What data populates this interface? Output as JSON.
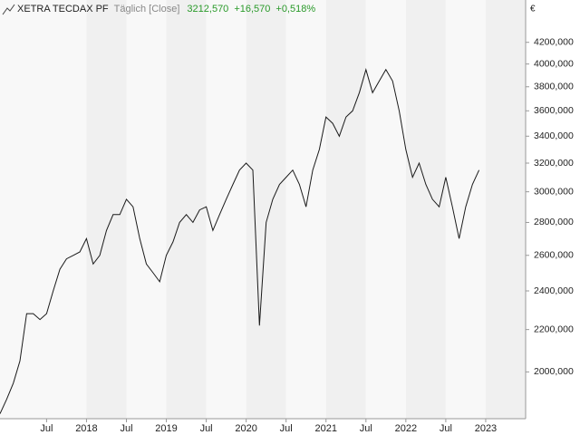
{
  "chart_data": {
    "type": "line",
    "title": "XETRA TECDAX PF",
    "subtitle": "Täglich [Close]",
    "last_value": "3212,570",
    "change": "+16,570",
    "change_pct": "+0,518%",
    "y_unit": "€",
    "color": "#1a1a1a",
    "log_scale": true,
    "x": [
      "2016-12",
      "2017-01",
      "2017-02",
      "2017-03",
      "2017-04",
      "2017-05",
      "2017-06",
      "2017-07",
      "2017-08",
      "2017-09",
      "2017-10",
      "2017-11",
      "2017-12",
      "2018-01",
      "2018-02",
      "2018-03",
      "2018-04",
      "2018-05",
      "2018-06",
      "2018-07",
      "2018-08",
      "2018-09",
      "2018-10",
      "2018-11",
      "2018-12",
      "2019-01",
      "2019-02",
      "2019-03",
      "2019-04",
      "2019-05",
      "2019-06",
      "2019-07",
      "2019-08",
      "2019-09",
      "2019-10",
      "2019-11",
      "2019-12",
      "2020-01",
      "2020-02",
      "2020-03",
      "2020-04",
      "2020-05",
      "2020-06",
      "2020-07",
      "2020-08",
      "2020-09",
      "2020-10",
      "2020-11",
      "2020-12",
      "2021-01",
      "2021-02",
      "2021-03",
      "2021-04",
      "2021-05",
      "2021-06",
      "2021-07",
      "2021-08",
      "2021-09",
      "2021-10",
      "2021-11",
      "2021-12",
      "2022-01",
      "2022-02",
      "2022-03",
      "2022-04",
      "2022-05",
      "2022-06",
      "2022-07",
      "2022-08",
      "2022-09",
      "2022-10",
      "2022-11",
      "2022-12"
    ],
    "values": [
      1820,
      1880,
      1950,
      2050,
      2280,
      2280,
      2250,
      2280,
      2400,
      2520,
      2580,
      2600,
      2620,
      2700,
      2550,
      2600,
      2750,
      2850,
      2850,
      2950,
      2900,
      2700,
      2550,
      2500,
      2450,
      2600,
      2680,
      2800,
      2850,
      2800,
      2880,
      2900,
      2750,
      2850,
      2950,
      3050,
      3150,
      3200,
      3150,
      2220,
      2800,
      2950,
      3050,
      3100,
      3150,
      3050,
      2900,
      3150,
      3300,
      3550,
      3500,
      3400,
      3550,
      3600,
      3750,
      3950,
      3750,
      3850,
      3950,
      3850,
      3600,
      3300,
      3100,
      3200,
      3050,
      2950,
      2900,
      3100,
      2900,
      2700,
      2900,
      3050,
      3150
    ],
    "xlim": [
      "2016-12",
      "2023-07"
    ],
    "xticks": [
      {
        "value": "2017-07",
        "label": "Jul"
      },
      {
        "value": "2018-01",
        "label": "2018"
      },
      {
        "value": "2018-07",
        "label": "Jul"
      },
      {
        "value": "2019-01",
        "label": "2019"
      },
      {
        "value": "2019-07",
        "label": "Jul"
      },
      {
        "value": "2020-01",
        "label": "2020"
      },
      {
        "value": "2020-07",
        "label": "Jul"
      },
      {
        "value": "2021-01",
        "label": "2021"
      },
      {
        "value": "2021-07",
        "label": "Jul"
      },
      {
        "value": "2022-01",
        "label": "2022"
      },
      {
        "value": "2022-07",
        "label": "Jul"
      },
      {
        "value": "2023-01",
        "label": "2023"
      }
    ],
    "ylim": [
      1800,
      4620
    ],
    "yticks": [
      {
        "value": 2000,
        "label": "2000,000"
      },
      {
        "value": 2200,
        "label": "2200,000"
      },
      {
        "value": 2400,
        "label": "2400,000"
      },
      {
        "value": 2600,
        "label": "2600,000"
      },
      {
        "value": 2800,
        "label": "2800,000"
      },
      {
        "value": 3000,
        "label": "3000,000"
      },
      {
        "value": 3200,
        "label": "3200,000"
      },
      {
        "value": 3400,
        "label": "3400,000"
      },
      {
        "value": 3600,
        "label": "3600,000"
      },
      {
        "value": 3800,
        "label": "3800,000"
      },
      {
        "value": 4000,
        "label": "4000,000"
      },
      {
        "value": 4200,
        "label": "4200,000"
      }
    ]
  }
}
